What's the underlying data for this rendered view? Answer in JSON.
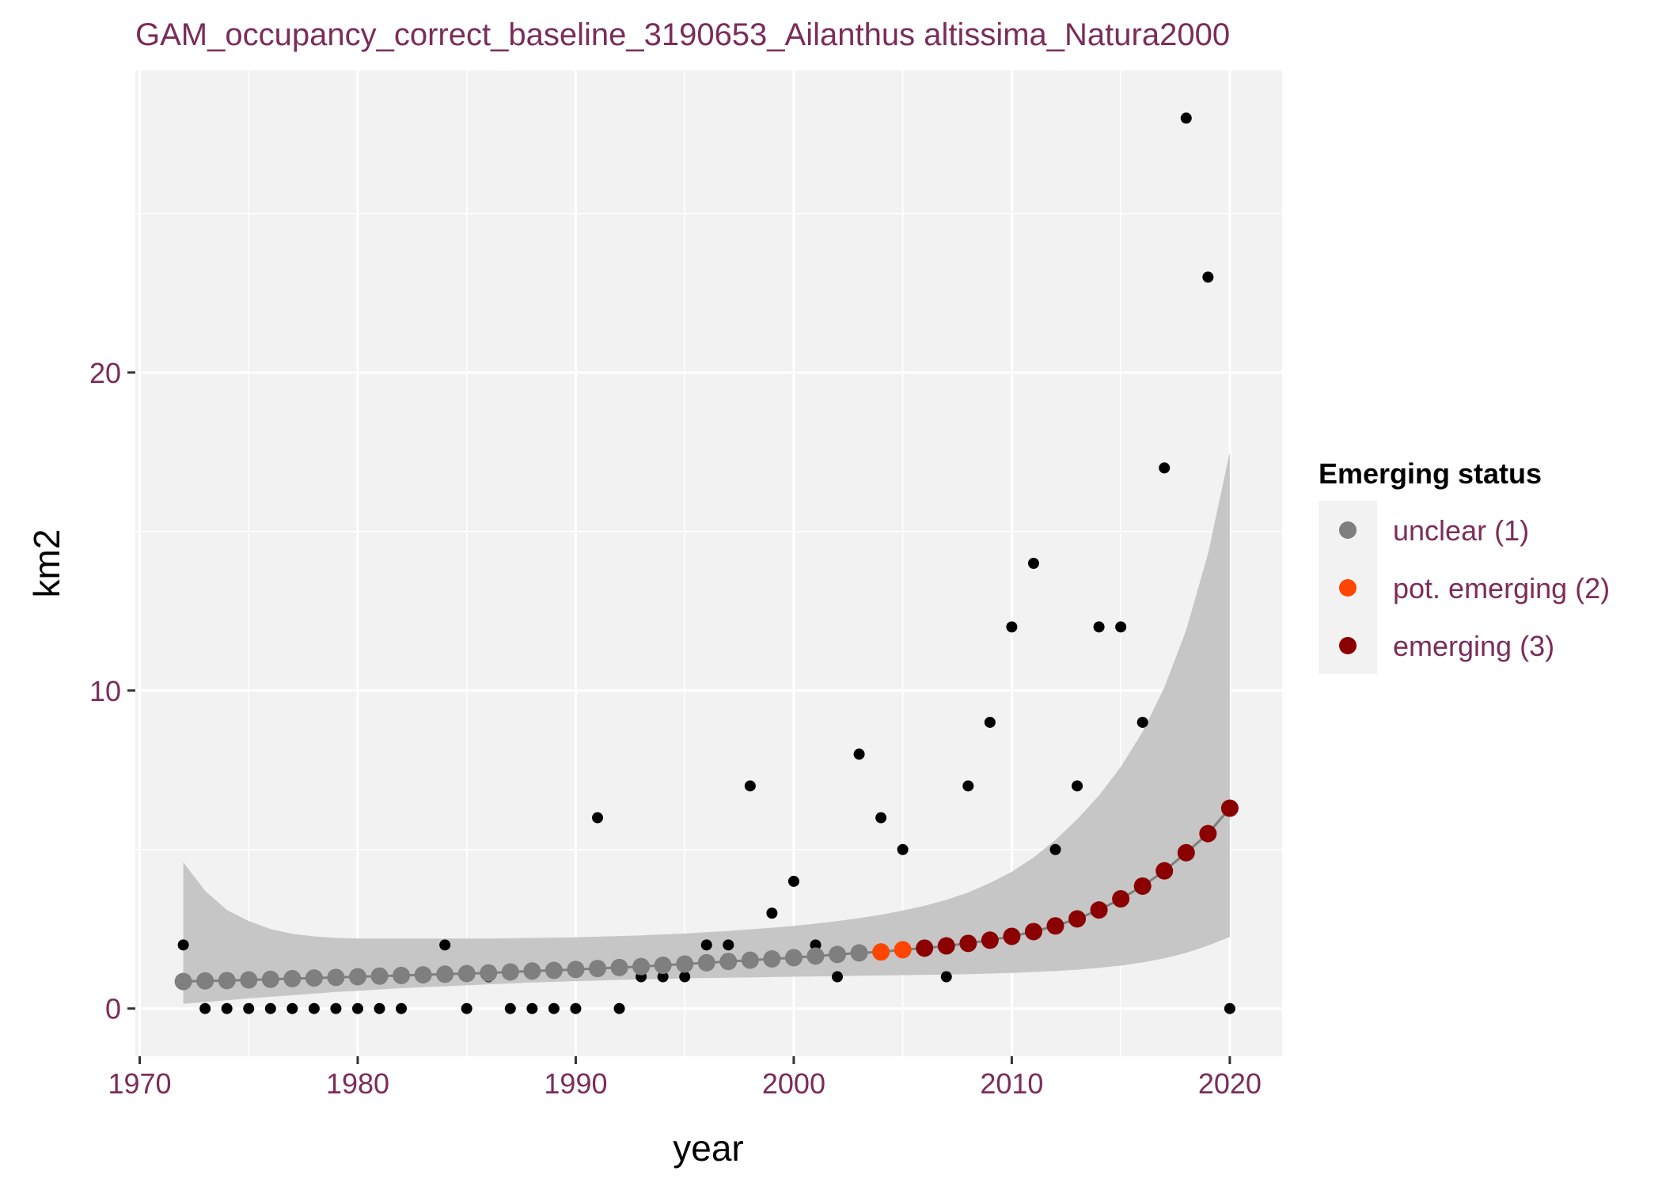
{
  "chart_data": {
    "type": "scatter",
    "title": "GAM_occupancy_correct_baseline_3190653_Ailanthus altissima_Natura2000",
    "xlabel": "year",
    "ylabel": "km2",
    "xlim": [
      1969.8,
      2022.4
    ],
    "ylim": [
      -1.5,
      29.5
    ],
    "x_ticks": [
      1970,
      1980,
      1990,
      2000,
      2010,
      2020
    ],
    "y_ticks": [
      0,
      10,
      20
    ],
    "grid": true,
    "legend_position": "right",
    "observed": {
      "x": [
        1972,
        1973,
        1974,
        1975,
        1976,
        1977,
        1978,
        1979,
        1980,
        1981,
        1982,
        1984,
        1985,
        1986,
        1987,
        1988,
        1989,
        1990,
        1991,
        1992,
        1993,
        1994,
        1995,
        1996,
        1997,
        1998,
        1999,
        2000,
        2001,
        2002,
        2003,
        2004,
        2005,
        2007,
        2008,
        2009,
        2010,
        2011,
        2012,
        2013,
        2014,
        2015,
        2016,
        2017,
        2018,
        2019,
        2020
      ],
      "y": [
        2,
        0,
        0,
        0,
        0,
        0,
        0,
        0,
        0,
        0,
        0,
        2,
        0,
        1,
        0,
        0,
        0,
        0,
        6,
        0,
        1,
        1,
        1,
        2,
        2,
        7,
        3,
        4,
        2,
        1,
        8,
        6,
        5,
        1,
        7,
        9,
        12,
        14,
        5,
        7,
        12,
        12,
        9,
        17,
        28,
        23,
        0
      ],
      "color": "#000000"
    },
    "fit": {
      "x": [
        1972,
        1973,
        1974,
        1975,
        1976,
        1977,
        1978,
        1979,
        1980,
        1981,
        1982,
        1983,
        1984,
        1985,
        1986,
        1987,
        1988,
        1989,
        1990,
        1991,
        1992,
        1993,
        1994,
        1995,
        1996,
        1997,
        1998,
        1999,
        2000,
        2001,
        2002,
        2003,
        2004,
        2005,
        2006,
        2007,
        2008,
        2009,
        2010,
        2011,
        2012,
        2013,
        2014,
        2015,
        2016,
        2017,
        2018,
        2019,
        2020
      ],
      "y": [
        0.85,
        0.87,
        0.88,
        0.9,
        0.92,
        0.94,
        0.96,
        0.98,
        1.0,
        1.02,
        1.04,
        1.06,
        1.08,
        1.1,
        1.12,
        1.15,
        1.18,
        1.2,
        1.23,
        1.26,
        1.29,
        1.32,
        1.36,
        1.4,
        1.44,
        1.48,
        1.52,
        1.56,
        1.6,
        1.65,
        1.7,
        1.75,
        1.78,
        1.85,
        1.9,
        1.97,
        2.05,
        2.15,
        2.27,
        2.42,
        2.6,
        2.82,
        3.1,
        3.45,
        3.85,
        4.33,
        4.9,
        5.5,
        6.3
      ],
      "status": [
        1,
        1,
        1,
        1,
        1,
        1,
        1,
        1,
        1,
        1,
        1,
        1,
        1,
        1,
        1,
        1,
        1,
        1,
        1,
        1,
        1,
        1,
        1,
        1,
        1,
        1,
        1,
        1,
        1,
        1,
        1,
        1,
        2,
        2,
        3,
        3,
        3,
        3,
        3,
        3,
        3,
        3,
        3,
        3,
        3,
        3,
        3,
        3,
        3
      ],
      "lower": [
        0.15,
        0.2,
        0.26,
        0.32,
        0.37,
        0.42,
        0.47,
        0.52,
        0.56,
        0.6,
        0.64,
        0.67,
        0.7,
        0.73,
        0.76,
        0.79,
        0.82,
        0.84,
        0.86,
        0.88,
        0.9,
        0.92,
        0.93,
        0.95,
        0.96,
        0.97,
        0.98,
        0.99,
        1.0,
        1.01,
        1.02,
        1.03,
        1.04,
        1.05,
        1.06,
        1.07,
        1.08,
        1.1,
        1.12,
        1.15,
        1.18,
        1.22,
        1.28,
        1.35,
        1.45,
        1.58,
        1.75,
        1.98,
        2.25
      ],
      "upper": [
        4.6,
        3.7,
        3.1,
        2.75,
        2.5,
        2.35,
        2.27,
        2.22,
        2.2,
        2.2,
        2.2,
        2.2,
        2.2,
        2.2,
        2.2,
        2.21,
        2.22,
        2.23,
        2.24,
        2.26,
        2.28,
        2.3,
        2.33,
        2.36,
        2.4,
        2.44,
        2.49,
        2.54,
        2.6,
        2.67,
        2.75,
        2.84,
        2.95,
        3.08,
        3.23,
        3.42,
        3.65,
        3.95,
        4.3,
        4.75,
        5.3,
        5.95,
        6.7,
        7.6,
        8.7,
        10.1,
        11.9,
        14.3,
        17.5
      ],
      "line_color": "#7f7f7f",
      "ribbon_color": "#c6c6c6"
    },
    "legend": {
      "title": "Emerging status",
      "items": [
        {
          "label": "unclear (1)",
          "color": "#7f7f7f",
          "status": 1
        },
        {
          "label": "pot. emerging (2)",
          "color": "#ff4500",
          "status": 2
        },
        {
          "label": "emerging (3)",
          "color": "#8b0000",
          "status": 3
        }
      ]
    },
    "panel_background": "#f2f2f2",
    "grid_color": "#ffffff"
  }
}
